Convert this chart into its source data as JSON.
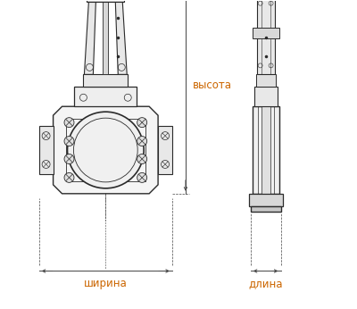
{
  "bg_color": "#ffffff",
  "line_color": "#2a2a2a",
  "dim_color": "#444444",
  "label_color": "#cc6600",
  "label_fontsize": 8.5,
  "fig_width": 4.0,
  "fig_height": 3.46,
  "dpi": 100,
  "labels": {
    "width": "ширина",
    "length": "длина",
    "height": "высота"
  }
}
